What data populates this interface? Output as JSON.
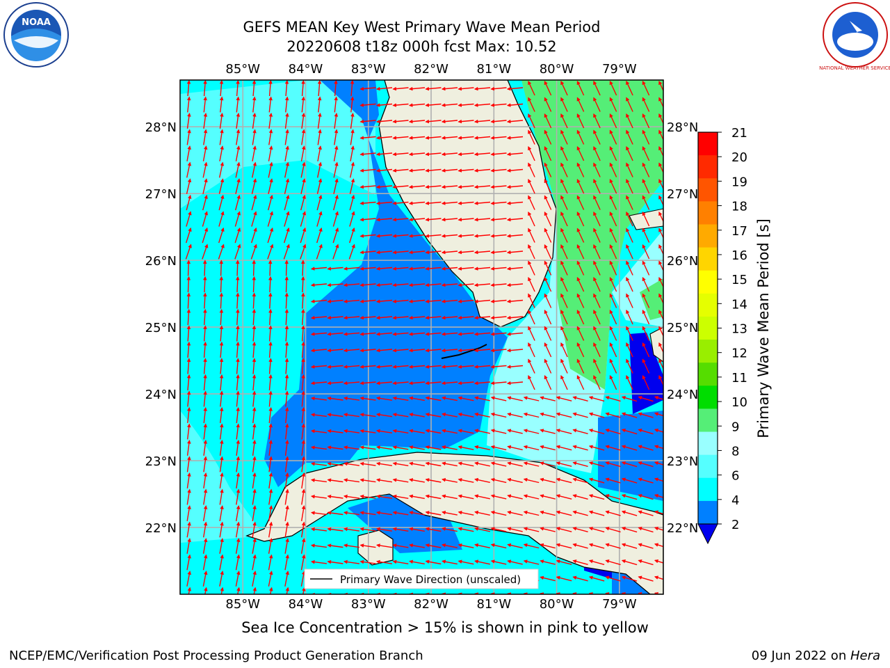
{
  "header": {
    "title_line1": "GEFS MEAN Key West Primary Wave Mean Period",
    "title_line2": "20220608 t18z 000h fcst   Max: 10.52"
  },
  "logos": {
    "left": "noara-logo",
    "right_text": "NATIONAL WEATHER SERVICE"
  },
  "map": {
    "lon_labels": [
      "85°W",
      "84°W",
      "83°W",
      "82°W",
      "81°W",
      "80°W",
      "79°W"
    ],
    "lon_values": [
      -85,
      -84,
      -83,
      -82,
      -81,
      -80,
      -79
    ],
    "lat_labels": [
      "28°N",
      "27°N",
      "26°N",
      "25°N",
      "24°N",
      "23°N",
      "22°N"
    ],
    "lat_values": [
      28,
      27,
      26,
      25,
      24,
      23,
      22
    ],
    "legend_label": "Primary Wave Direction (unscaled)",
    "colors": {
      "land": "#efefdf",
      "arrow": "#ff0000",
      "grid": "#b0b0b0"
    }
  },
  "colorbar": {
    "label": "Primary Wave Mean Period [s]",
    "ticks": [
      "21",
      "20",
      "19",
      "18",
      "17",
      "16",
      "15",
      "14",
      "13",
      "12",
      "11",
      "10",
      "9",
      "8",
      "6",
      "4",
      "2"
    ],
    "colors": [
      "#ff0000",
      "#ff2a00",
      "#ff5500",
      "#ff8000",
      "#ffaa00",
      "#ffd500",
      "#ffff00",
      "#e5ff00",
      "#ccff00",
      "#99ee00",
      "#55dd00",
      "#00dd00",
      "#55ee77",
      "#99ffff",
      "#55ffff",
      "#00ffff",
      "#0080ff"
    ],
    "under_color": "#0000ee"
  },
  "chart_data": {
    "type": "heatmap",
    "title": "GEFS MEAN Key West Primary Wave Mean Period",
    "subtitle": "20220608 t18z 000h fcst   Max: 10.52",
    "colorbar_label": "Primary Wave Mean Period [s]",
    "max_value": 10.52,
    "levels": [
      2,
      4,
      6,
      8,
      9,
      10,
      11,
      12,
      13,
      14,
      15,
      16,
      17,
      18,
      19,
      20,
      21
    ],
    "lon_range": [
      -86,
      -78.3
    ],
    "lat_range": [
      21,
      28.7
    ]
  },
  "caption": "Sea Ice Concentration > 15% is shown in pink to yellow",
  "footer": {
    "left": "NCEP/EMC/Verification Post Processing Product Generation Branch",
    "right_prefix": "09 Jun 2022 on ",
    "right_host": "Hera"
  }
}
